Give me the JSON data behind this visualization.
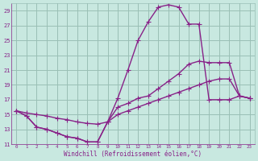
{
  "xlabel": "Windchill (Refroidissement éolien,°C)",
  "bg_color": "#c8e8e0",
  "grid_color": "#9abfb5",
  "line_color": "#882288",
  "xlim_min": -0.5,
  "xlim_max": 23.5,
  "ylim_min": 11,
  "ylim_max": 30,
  "xticks": [
    0,
    1,
    2,
    3,
    4,
    5,
    6,
    7,
    8,
    9,
    10,
    11,
    12,
    13,
    14,
    15,
    16,
    17,
    18,
    19,
    20,
    21,
    22,
    23
  ],
  "yticks": [
    11,
    13,
    15,
    17,
    19,
    21,
    23,
    25,
    27,
    29
  ],
  "line1_x": [
    0,
    1,
    2,
    3,
    4,
    5,
    6,
    7,
    8,
    9,
    10,
    11,
    12,
    13,
    14,
    15,
    16,
    17,
    18,
    19,
    20,
    21,
    22,
    23
  ],
  "line1_y": [
    15.5,
    14.8,
    13.3,
    13.0,
    12.5,
    12.0,
    11.8,
    11.3,
    11.3,
    14.0,
    17.2,
    21.0,
    25.0,
    27.5,
    29.5,
    29.8,
    29.5,
    27.2,
    27.2,
    17.0,
    17.0,
    17.0,
    17.5,
    17.2
  ],
  "line2_x": [
    0,
    1,
    2,
    3,
    4,
    5,
    6,
    7,
    8,
    9,
    10,
    11,
    12,
    13,
    14,
    15,
    16,
    17,
    18,
    19,
    20,
    21,
    22,
    23
  ],
  "line2_y": [
    15.5,
    14.8,
    13.3,
    13.0,
    12.5,
    12.0,
    11.8,
    11.3,
    11.3,
    14.0,
    16.0,
    16.5,
    17.2,
    17.5,
    18.5,
    19.5,
    20.5,
    21.8,
    22.2,
    22.0,
    22.0,
    22.0,
    17.5,
    17.2
  ],
  "line3_x": [
    0,
    1,
    2,
    3,
    4,
    5,
    6,
    7,
    8,
    9,
    10,
    11,
    12,
    13,
    14,
    15,
    16,
    17,
    18,
    19,
    20,
    21,
    22,
    23
  ],
  "line3_y": [
    15.5,
    15.2,
    15.0,
    14.8,
    14.5,
    14.3,
    14.0,
    13.8,
    13.7,
    14.0,
    15.0,
    15.5,
    16.0,
    16.5,
    17.0,
    17.5,
    18.0,
    18.5,
    19.0,
    19.5,
    19.8,
    19.8,
    17.5,
    17.2
  ]
}
